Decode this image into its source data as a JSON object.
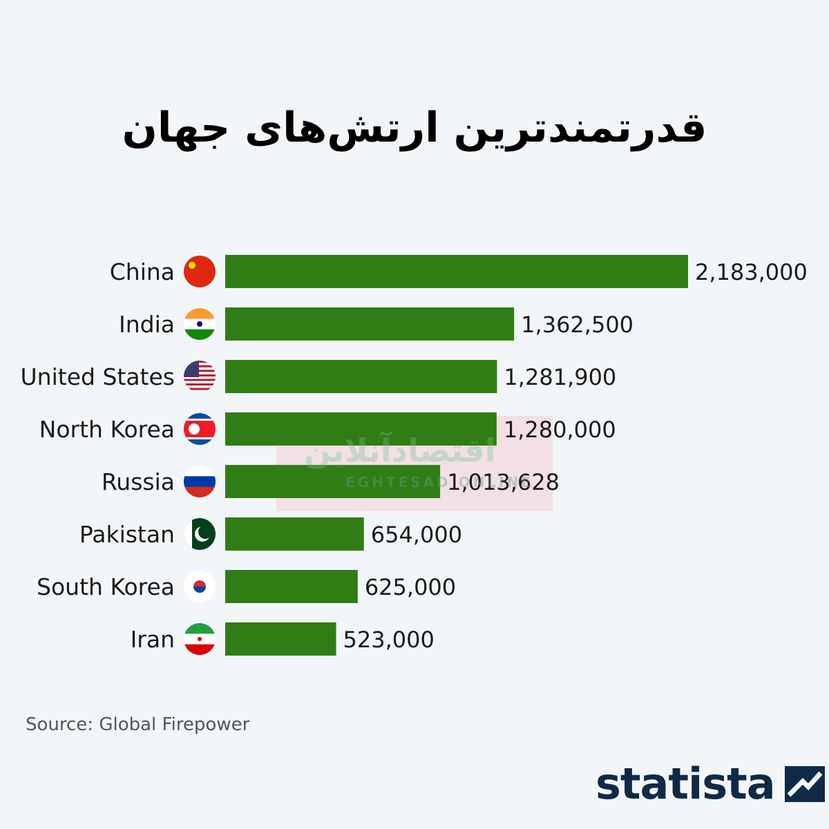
{
  "chart_data": {
    "type": "bar",
    "orientation": "horizontal",
    "title": "قدرتمندترین ارتش‌های جهان",
    "categories": [
      "China",
      "India",
      "United States",
      "North Korea",
      "Russia",
      "Pakistan",
      "South Korea",
      "Iran"
    ],
    "values": [
      2183000,
      1362500,
      1281900,
      1280000,
      1013628,
      654000,
      625000,
      523000
    ],
    "value_labels": [
      "2,183,000",
      "1,362,500",
      "1,281,900",
      "1,280,000",
      "1,013,628",
      "654,000",
      "625,000",
      "523,000"
    ],
    "xlim": [
      0,
      2183000
    ],
    "grid": false,
    "bar_color": "#2f7d14"
  },
  "source": "Source: Global Firepower",
  "logo": "statista",
  "watermark": {
    "fa": "اقتصادآنلاین",
    "en": "EGHTESAD ONLINE"
  }
}
